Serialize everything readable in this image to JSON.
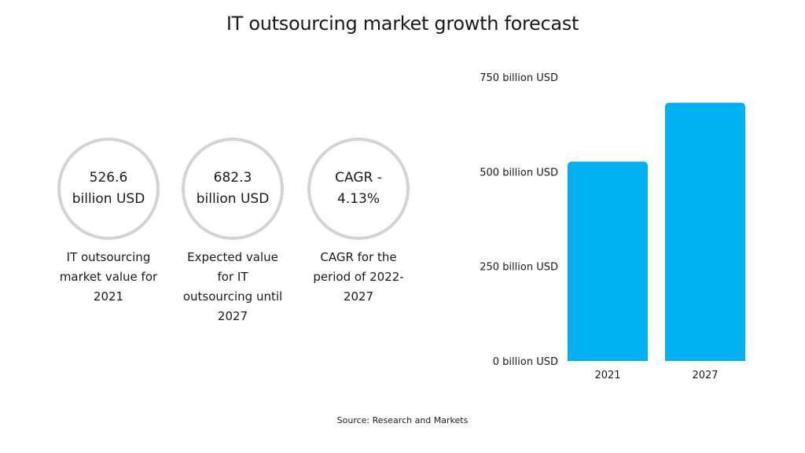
{
  "title": "IT outsourcing market growth forecast",
  "stats": [
    {
      "value": "526.6 billion USD",
      "caption": "IT outsourcing market value for 2021"
    },
    {
      "value": "682.3 billion USD",
      "caption": "Expected value for IT outsourcing until 2027"
    },
    {
      "value": "CAGR - 4.13%",
      "caption": "CAGR for the period of 2022-2027"
    }
  ],
  "source": "Source: Research and Markets",
  "colors": {
    "bar": "#00b0f0",
    "circle_border": "#d3d3d3"
  },
  "chart_data": {
    "type": "bar",
    "title": "",
    "xlabel": "",
    "ylabel": "",
    "categories": [
      "2021",
      "2027"
    ],
    "values": [
      526.6,
      682.3
    ],
    "ylim": [
      0,
      750
    ],
    "yticks": [
      0,
      250,
      500,
      750
    ],
    "ytick_labels": [
      "0 billion USD",
      "250 billion USD",
      "500 billion USD",
      "750 billion USD"
    ],
    "grid": false,
    "legend": "none"
  }
}
